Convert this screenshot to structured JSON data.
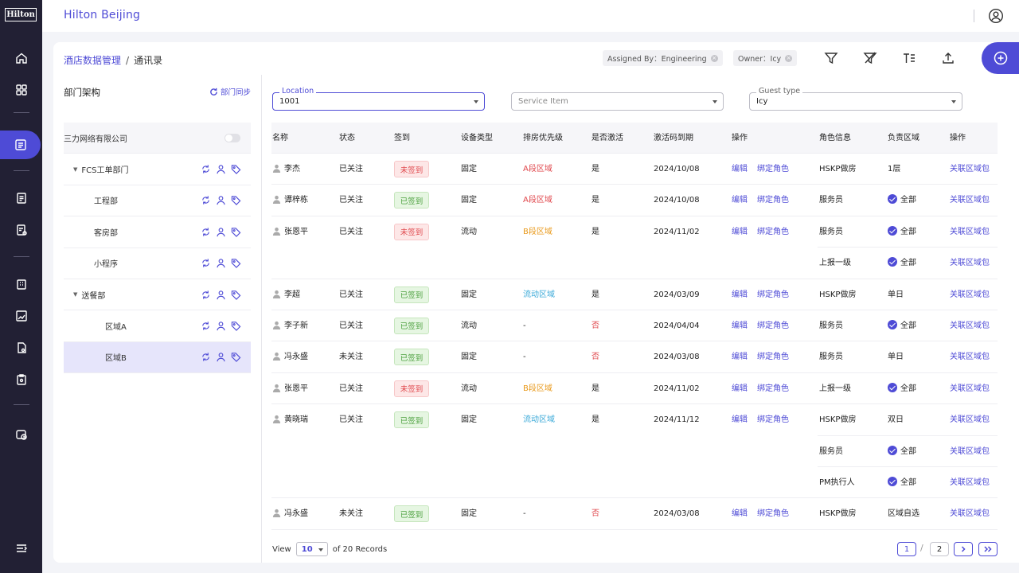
{
  "sidebar": {
    "logo": "Hilton",
    "items": [
      {
        "icon": "home-icon"
      },
      {
        "icon": "grid-icon"
      },
      {
        "icon": "contacts-list-icon",
        "active": true
      },
      {
        "icon": "document-icon"
      },
      {
        "icon": "report-icon"
      },
      {
        "icon": "building-icon"
      },
      {
        "icon": "image-box-icon"
      },
      {
        "icon": "file-settings-icon"
      },
      {
        "icon": "clipboard-icon"
      },
      {
        "icon": "clock-tag-icon"
      },
      {
        "icon": "menu-collapse-icon"
      }
    ]
  },
  "header": {
    "title": "Hilton Beijing",
    "user_icon": "user-circle-icon"
  },
  "breadcrumb": {
    "root": "酒店数据管理",
    "sep": "/",
    "current": "通讯录"
  },
  "chips": [
    {
      "label": "Assigned By：Engineering"
    },
    {
      "label": "Owner：Icy"
    }
  ],
  "toolbar": {
    "filter": "filter-icon",
    "clear_filter": "filter-clear-icon",
    "sort": "text-sort-icon",
    "export": "upload-icon",
    "add": "plus-circle-icon"
  },
  "tree": {
    "title": "部门架构",
    "sync_label": "部门同步",
    "rows": [
      {
        "label": "三力网络有限公司",
        "depth": 0,
        "root": true
      },
      {
        "label": "FCS工单部门",
        "depth": 1,
        "caret": "▼"
      },
      {
        "label": "工程部",
        "depth": 2
      },
      {
        "label": "客房部",
        "depth": 2
      },
      {
        "label": "小程序",
        "depth": 2
      },
      {
        "label": "送餐部",
        "depth": 1,
        "caret": "▼"
      },
      {
        "label": "区域A",
        "depth": 3
      },
      {
        "label": "区域B",
        "depth": 3,
        "selected": true
      }
    ]
  },
  "filters": {
    "location": {
      "label": "Location",
      "value": "1001"
    },
    "service": {
      "placeholder": "Service Item"
    },
    "guest": {
      "label": "Guest type",
      "value": "Icy"
    }
  },
  "table": {
    "headers": [
      "名称",
      "状态",
      "签到",
      "设备类型",
      "排房优先级",
      "是否激活",
      "激活码到期",
      "操作",
      "角色信息",
      "负责区域",
      "操作"
    ],
    "edit_label": "编辑",
    "bind_label": "绑定角色",
    "link_label": "关联区域包",
    "all_label": "全部",
    "rows": [
      {
        "name": "李杰",
        "status": "已关注",
        "sign": "未签到",
        "sign_type": "red",
        "device": "固定",
        "zone": "A段区域",
        "zone_type": "red",
        "active": "是",
        "expire": "2024/10/08",
        "role": "HSKP做房",
        "area": "1层",
        "area_all": false
      },
      {
        "name": "谭梓栋",
        "status": "已关注",
        "sign": "已签到",
        "sign_type": "green",
        "device": "固定",
        "zone": "A段区域",
        "zone_type": "red",
        "active": "是",
        "expire": "2024/10/08",
        "role": "服务员",
        "area": "全部",
        "area_all": true
      },
      {
        "name": "张恩平",
        "status": "已关注",
        "sign": "未签到",
        "sign_type": "red",
        "device": "流动",
        "zone": "B段区域",
        "zone_type": "orange",
        "active": "是",
        "expire": "2024/11/02",
        "role": "服务员",
        "area": "全部",
        "area_all": true
      },
      {
        "sub": true,
        "role": "上报一级",
        "area": "全部",
        "area_all": true
      },
      {
        "name": "李超",
        "status": "已关注",
        "sign": "已签到",
        "sign_type": "green",
        "device": "固定",
        "zone": "流动区域",
        "zone_type": "blue",
        "active": "是",
        "expire": "2024/03/09",
        "role": "HSKP做房",
        "area": "单日",
        "area_all": false
      },
      {
        "name": "李子新",
        "status": "已关注",
        "sign": "已签到",
        "sign_type": "green",
        "device": "流动",
        "zone": "-",
        "zone_type": "plain",
        "active": "否",
        "expire": "2024/04/04",
        "role": "服务员",
        "area": "全部",
        "area_all": true
      },
      {
        "name": "冯永盛",
        "status": "未关注",
        "sign": "已签到",
        "sign_type": "green",
        "device": "固定",
        "zone": "-",
        "zone_type": "plain",
        "active": "否",
        "expire": "2024/03/08",
        "role": "服务员",
        "area": "单日",
        "area_all": false
      },
      {
        "name": "张恩平",
        "status": "已关注",
        "sign": "未签到",
        "sign_type": "red",
        "device": "流动",
        "zone": "B段区域",
        "zone_type": "orange",
        "active": "是",
        "expire": "2024/11/02",
        "role": "上报一级",
        "area": "全部",
        "area_all": true
      },
      {
        "name": "黄晓瑞",
        "status": "已关注",
        "sign": "已签到",
        "sign_type": "green",
        "device": "固定",
        "zone": "流动区域",
        "zone_type": "blue",
        "active": "是",
        "expire": "2024/11/12",
        "role": "HSKP做房",
        "area": "双日",
        "area_all": false
      },
      {
        "sub": true,
        "role": "服务员",
        "area": "全部",
        "area_all": true
      },
      {
        "sub": true,
        "role": "PM执行人",
        "area": "全部",
        "area_all": true
      },
      {
        "name": "冯永盛",
        "status": "未关注",
        "sign": "已签到",
        "sign_type": "green",
        "device": "固定",
        "zone": "-",
        "zone_type": "plain",
        "active": "否",
        "expire": "2024/03/08",
        "role": "HSKP做房",
        "area": "区域自选",
        "area_all": false
      }
    ]
  },
  "pagination": {
    "view_label": "View",
    "page_size": "10",
    "records": "of 20 Records",
    "pages": [
      "1",
      "2"
    ],
    "sep": "/",
    "next_icon": "chevron-right-icon",
    "last_icon": "double-chevron-right-icon"
  }
}
